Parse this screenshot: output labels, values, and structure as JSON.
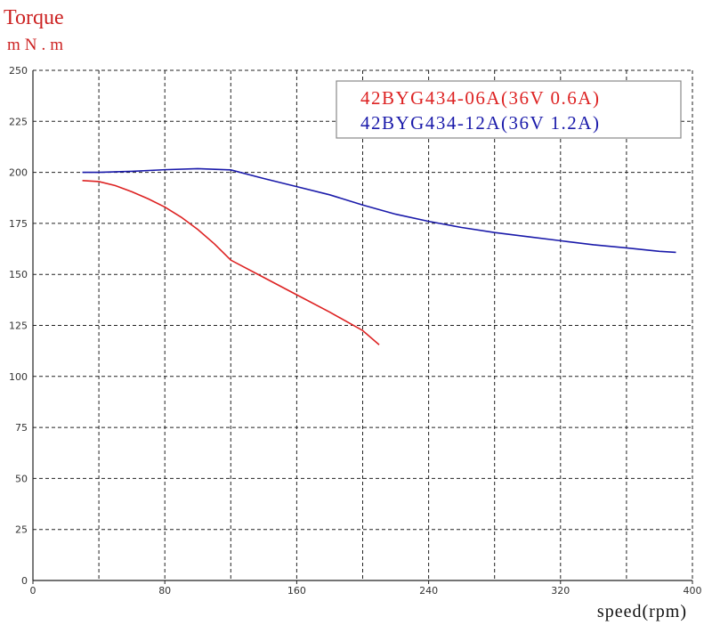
{
  "chart_data": {
    "type": "line",
    "y_title": "Torque",
    "y_unit": "mN.m",
    "x_title": "speed(rpm)",
    "xlim": [
      0,
      400
    ],
    "xticks": [
      0,
      80,
      160,
      240,
      320,
      400
    ],
    "x_gridlines": [
      40,
      80,
      120,
      160,
      200,
      240,
      280,
      320,
      360,
      400
    ],
    "ylim": [
      0,
      250
    ],
    "yticks": [
      0,
      25,
      50,
      75,
      100,
      125,
      150,
      175,
      200,
      225,
      250
    ],
    "grid": true,
    "series": [
      {
        "name": "42BYG434-06A(36V 0.6A)",
        "color": "#dd2222",
        "x": [
          30,
          40,
          50,
          60,
          70,
          80,
          90,
          100,
          110,
          120,
          140,
          160,
          180,
          200,
          210
        ],
        "values": [
          196,
          195.5,
          193.5,
          190.5,
          187,
          183,
          178,
          172,
          165,
          157,
          148.5,
          140,
          131.5,
          122.5,
          115.5
        ]
      },
      {
        "name": "42BYG434-12A(36V 1.2A)",
        "color": "#1a1aaa",
        "x": [
          30,
          40,
          60,
          80,
          100,
          120,
          140,
          160,
          180,
          200,
          220,
          240,
          260,
          280,
          300,
          320,
          340,
          360,
          380,
          390
        ],
        "values": [
          200,
          200,
          200.5,
          201.3,
          201.8,
          201.2,
          197,
          193,
          189,
          184,
          179.5,
          176,
          173,
          170.5,
          168.5,
          166.5,
          164.5,
          163,
          161.3,
          160.8
        ]
      }
    ]
  }
}
